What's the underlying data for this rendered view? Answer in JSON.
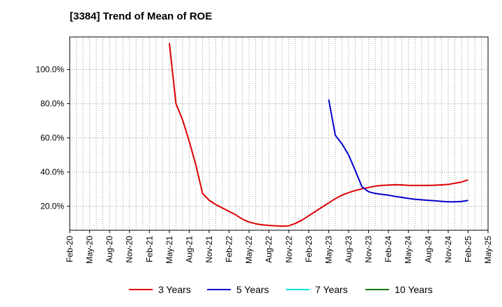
{
  "chart_data": {
    "type": "line",
    "title": "[3384]  Trend of Mean of ROE",
    "xlabel": "",
    "ylabel": "",
    "x_ticks": [
      "Feb-20",
      "May-20",
      "Aug-20",
      "Nov-20",
      "Feb-21",
      "May-21",
      "Aug-21",
      "Nov-21",
      "Feb-22",
      "May-22",
      "Aug-22",
      "Nov-22",
      "Feb-23",
      "May-23",
      "Aug-23",
      "Nov-23",
      "Feb-24",
      "May-24",
      "Aug-24",
      "Nov-24",
      "Feb-25",
      "May-25"
    ],
    "y_ticks": [
      20,
      40,
      60,
      80,
      100
    ],
    "y_tick_format": "percent_1dp",
    "ylim": [
      6,
      119
    ],
    "grid": true,
    "legend_position": "bottom",
    "series": [
      {
        "name": "3 Years",
        "color": "#dd0000",
        "x": [
          "2021-05",
          "2021-06",
          "2021-07",
          "2021-08",
          "2021-09",
          "2021-10",
          "2021-11",
          "2021-12",
          "2022-01",
          "2022-02",
          "2022-03",
          "2022-04",
          "2022-05",
          "2022-06",
          "2022-07",
          "2022-08",
          "2022-09",
          "2022-10",
          "2022-11",
          "2022-12",
          "2023-01",
          "2023-02",
          "2023-03",
          "2023-04",
          "2023-05",
          "2023-06",
          "2023-07",
          "2023-08",
          "2023-09",
          "2023-10",
          "2023-11",
          "2023-12",
          "2024-01",
          "2024-02",
          "2024-03",
          "2024-04",
          "2024-05",
          "2024-06",
          "2024-07",
          "2024-08",
          "2024-09",
          "2024-10",
          "2024-11",
          "2024-12",
          "2025-01",
          "2025-02"
        ],
        "values": [
          115.5,
          80,
          70.5,
          58,
          44,
          27.5,
          23.5,
          21,
          19,
          17,
          15,
          12.5,
          10.8,
          9.8,
          9.2,
          8.8,
          8.6,
          8.4,
          8.6,
          10,
          12,
          14.5,
          17,
          19.5,
          22,
          24.5,
          26.5,
          28,
          29.2,
          30.2,
          31,
          31.8,
          32.2,
          32.4,
          32.6,
          32.5,
          32.2,
          32.2,
          32.2,
          32.2,
          32.3,
          32.5,
          32.8,
          33.5,
          34.2,
          35.5
        ]
      },
      {
        "name": "5 Years",
        "color": "#0000cc",
        "x": [
          "2023-05",
          "2023-06",
          "2023-07",
          "2023-08",
          "2023-09",
          "2023-10",
          "2023-11",
          "2023-12",
          "2024-01",
          "2024-02",
          "2024-03",
          "2024-04",
          "2024-05",
          "2024-06",
          "2024-07",
          "2024-08",
          "2024-09",
          "2024-10",
          "2024-11",
          "2024-12",
          "2025-01",
          "2025-02"
        ],
        "values": [
          82.5,
          61.5,
          56.5,
          50,
          41,
          31.5,
          28.5,
          27.5,
          27,
          26.5,
          25.8,
          25.2,
          24.6,
          24.1,
          23.8,
          23.5,
          23.2,
          22.9,
          22.6,
          22.6,
          22.8,
          23.4
        ]
      },
      {
        "name": "7 Years",
        "color": "#00e5ee",
        "x": [],
        "values": []
      },
      {
        "name": "10 Years",
        "color": "#007700",
        "x": [],
        "values": []
      }
    ]
  }
}
